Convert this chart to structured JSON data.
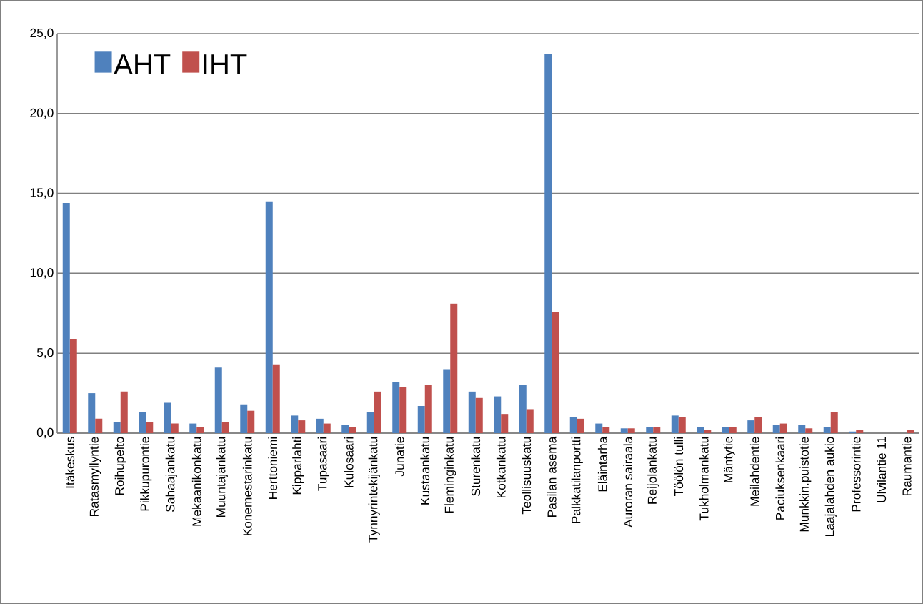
{
  "chart_data": {
    "type": "bar",
    "categories": [
      "Itäkeskus",
      "Ratasmyllyntie",
      "Roihupelto",
      "Pikkupurontie",
      "Sahaajankatu",
      "Mekaanikonkatu",
      "Muuntajankatu",
      "Konemestarinkatu",
      "Herttoniemi",
      "Kipparlahti",
      "Tupasaari",
      "Kulosaari",
      "Tynnyrintekijänkatu",
      "Junatie",
      "Kustaankatu",
      "Fleminginkatu",
      "Sturenkatu",
      "Kotkankatu",
      "Teollisuuskatu",
      "Pasilan asema",
      "Palkkatilanportti",
      "Eläintarha",
      "Auroran sairaala",
      "Reijolankatu",
      "Töölön tulli",
      "Tukholmankatu",
      "Mäntytie",
      "Meilahdentie",
      "Paciuksenkaari",
      "Munkkin.puistotie",
      "Laajalahden aukio",
      "Professorintie",
      "Ulvilantie 11",
      "Raumantie"
    ],
    "series": [
      {
        "name": "AHT",
        "color": "#4f81bd",
        "values": [
          14.4,
          2.5,
          0.7,
          1.3,
          1.9,
          0.6,
          4.1,
          1.8,
          14.5,
          1.1,
          0.9,
          0.5,
          1.3,
          3.2,
          1.7,
          4.0,
          2.6,
          2.3,
          3.0,
          23.7,
          1.0,
          0.6,
          0.3,
          0.4,
          1.1,
          0.4,
          0.4,
          0.8,
          0.5,
          0.5,
          0.4,
          0.1,
          0,
          0
        ]
      },
      {
        "name": "IHT",
        "color": "#c0504d",
        "values": [
          5.9,
          0.9,
          2.6,
          0.7,
          0.6,
          0.4,
          0.7,
          1.4,
          4.3,
          0.8,
          0.6,
          0.4,
          2.6,
          2.9,
          3.0,
          8.1,
          2.2,
          1.2,
          1.5,
          7.6,
          0.9,
          0.4,
          0.3,
          0.4,
          1.0,
          0.2,
          0.4,
          1.0,
          0.6,
          0.3,
          1.3,
          0.2,
          0,
          0.2
        ]
      }
    ],
    "ylim": [
      0,
      25
    ],
    "yticks": [
      {
        "value": 0,
        "label": "0,0"
      },
      {
        "value": 5,
        "label": "5,0"
      },
      {
        "value": 10,
        "label": "10,0"
      },
      {
        "value": 15,
        "label": "15,0"
      },
      {
        "value": 20,
        "label": "20,0"
      },
      {
        "value": 25,
        "label": "25,0"
      }
    ],
    "grid": "y",
    "legend": "top left"
  }
}
